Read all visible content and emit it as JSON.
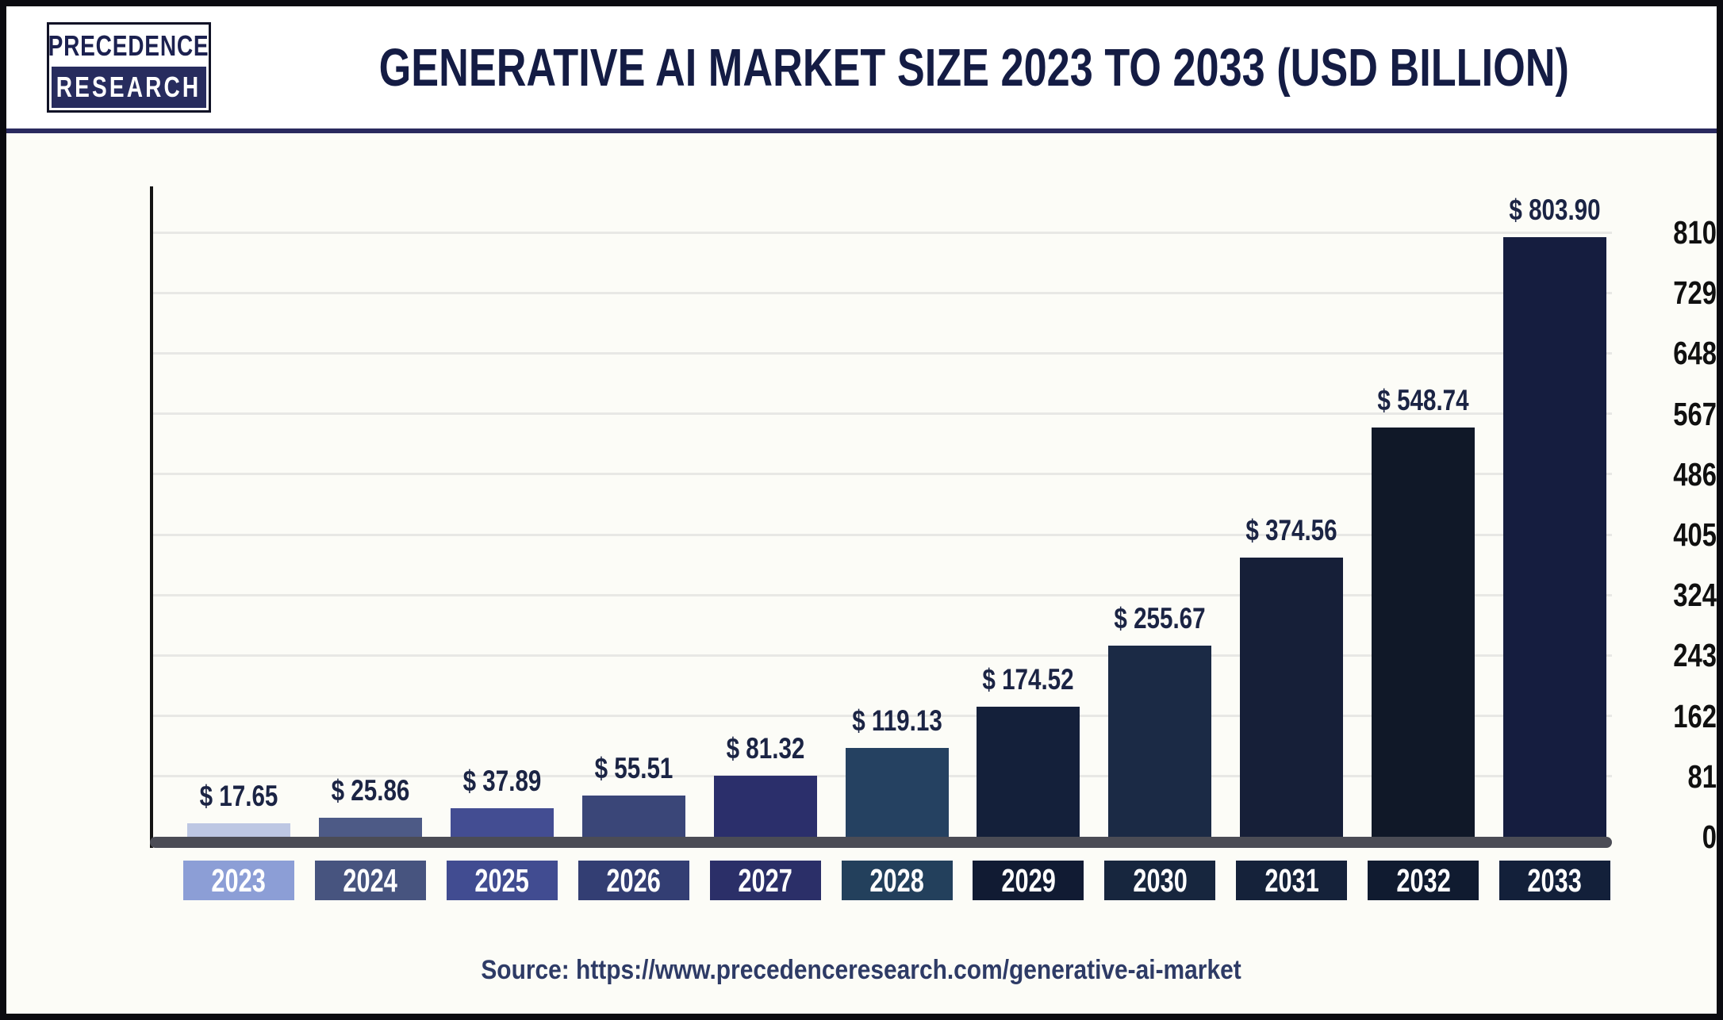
{
  "logo": {
    "line1": "PRECEDENCE",
    "line2": "RESEARCH"
  },
  "header": {
    "title": "GENERATIVE AI MARKET SIZE 2023 TO 2033 (USD BILLION)"
  },
  "source": {
    "text": "Source: https://www.precedenceresearch.com/generative-ai-market"
  },
  "chart_data": {
    "type": "bar",
    "title": "Generative AI Market Size 2023 to 2033 (USD Billion)",
    "xlabel": "",
    "ylabel": "",
    "categories": [
      "2023",
      "2024",
      "2025",
      "2026",
      "2027",
      "2028",
      "2029",
      "2030",
      "2031",
      "2032",
      "2033"
    ],
    "values": [
      17.65,
      25.86,
      37.89,
      55.51,
      81.32,
      119.13,
      174.52,
      255.67,
      374.56,
      548.74,
      803.9
    ],
    "value_labels": [
      "$ 17.65",
      "$ 25.86",
      "$ 37.89",
      "$ 55.51",
      "$ 81.32",
      "$ 119.13",
      "$ 174.52",
      "$ 255.67",
      "$ 374.56",
      "$ 548.74",
      "$ 803.90"
    ],
    "yticks": [
      0,
      81,
      162,
      243,
      324,
      405,
      486,
      567,
      648,
      729,
      810
    ],
    "ylim": [
      0,
      810
    ],
    "grid": "horizontal",
    "legend": "none",
    "bar_colors": [
      "#bdc7e3",
      "#4d5a86",
      "#434d92",
      "#3a4678",
      "#2b2f6b",
      "#254161",
      "#14203a",
      "#1b2a45",
      "#161f38",
      "#101828",
      "#151d3f"
    ],
    "box_colors": [
      "#8c9ed6",
      "#47547f",
      "#414c91",
      "#333e73",
      "#2b2f68",
      "#23405c",
      "#111b33",
      "#17263e",
      "#15223a",
      "#101b30",
      "#13203a"
    ],
    "colors": {
      "title_navy": "#141c44",
      "value_label_navy": "#1b2444",
      "tick_label": "#101010",
      "axis_line": "#141414",
      "baseline_bar": "#4b4c55",
      "gridline": "#e8e8e5",
      "header_separator": "#2a2a5e",
      "frame_border": "#0b0b10",
      "chart_background": "#fcfcf7",
      "header_background": "#ffffff",
      "source_text": "#2e3b66",
      "year_label_text": "#ffffff"
    }
  }
}
